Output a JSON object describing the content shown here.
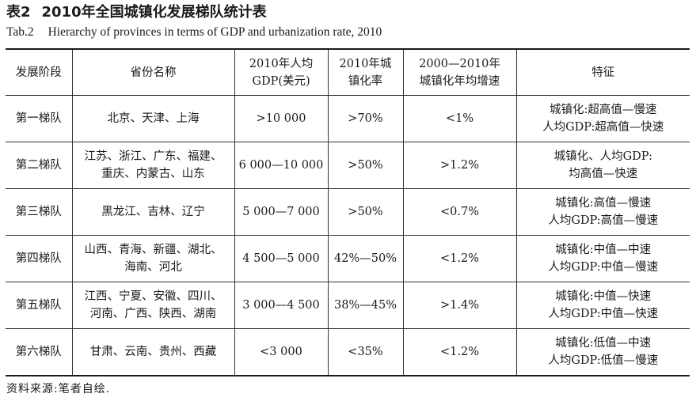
{
  "title": {
    "cn_number": "表2",
    "cn_text": "2010年全国城镇化发展梯队统计表",
    "en_number": "Tab.2",
    "en_text": "Hierarchy of provinces in terms of GDP and urbanization rate, 2010"
  },
  "table": {
    "headers": [
      [
        "发展阶段"
      ],
      [
        "省份名称"
      ],
      [
        "2010年人均",
        "GDP(美元)"
      ],
      [
        "2010年城",
        "镇化率"
      ],
      [
        "2000—2010年",
        "城镇化年均增速"
      ],
      [
        "特征"
      ]
    ],
    "rows": [
      [
        [
          "第一梯队"
        ],
        [
          "北京、天津、上海"
        ],
        [
          ">10 000"
        ],
        [
          ">70%"
        ],
        [
          "<1%"
        ],
        [
          "城镇化:超高值—慢速",
          "人均GDP:超高值—快速"
        ]
      ],
      [
        [
          "第二梯队"
        ],
        [
          "江苏、浙江、广东、福建、",
          "重庆、内蒙古、山东"
        ],
        [
          "6 000—10 000"
        ],
        [
          ">50%"
        ],
        [
          ">1.2%"
        ],
        [
          "城镇化、人均GDP:",
          "均高值—快速"
        ]
      ],
      [
        [
          "第三梯队"
        ],
        [
          "黑龙江、吉林、辽宁"
        ],
        [
          "5 000—7 000"
        ],
        [
          ">50%"
        ],
        [
          "<0.7%"
        ],
        [
          "城镇化:高值—慢速",
          "人均GDP:高值—慢速"
        ]
      ],
      [
        [
          "第四梯队"
        ],
        [
          "山西、青海、新疆、湖北、",
          "海南、河北"
        ],
        [
          "4 500—5 000"
        ],
        [
          "42%—50%"
        ],
        [
          "<1.2%"
        ],
        [
          "城镇化:中值—中速",
          "人均GDP:中值—慢速"
        ]
      ],
      [
        [
          "第五梯队"
        ],
        [
          "江西、宁夏、安徽、四川、",
          "河南、广西、陕西、湖南"
        ],
        [
          "3 000—4 500"
        ],
        [
          "38%—45%"
        ],
        [
          ">1.4%"
        ],
        [
          "城镇化:中值—快速",
          "人均GDP:中值—快速"
        ]
      ],
      [
        [
          "第六梯队"
        ],
        [
          "甘肃、云南、贵州、西藏"
        ],
        [
          "<3 000"
        ],
        [
          "<35%"
        ],
        [
          "<1.2%"
        ],
        [
          "城镇化:低值—中速",
          "人均GDP:低值—慢速"
        ]
      ]
    ]
  },
  "source_note": "资料来源:笔者自绘."
}
